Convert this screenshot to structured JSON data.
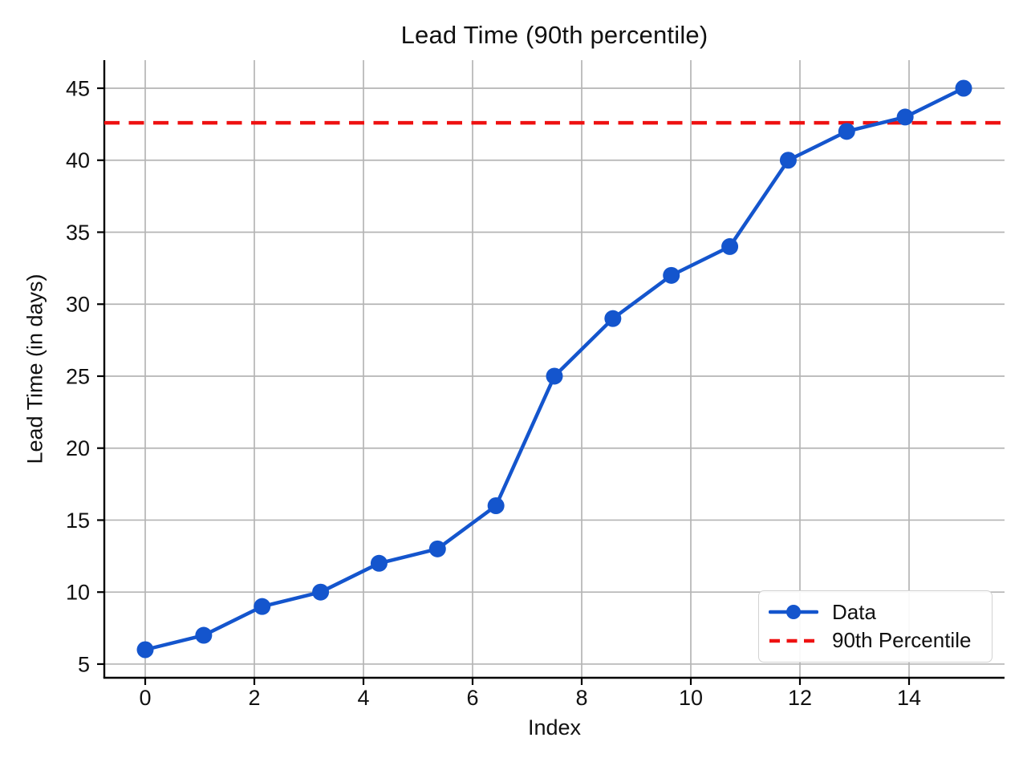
{
  "chart_data": {
    "type": "line",
    "title": "Lead Time (90th percentile)",
    "xlabel": "Index",
    "ylabel": "Lead Time (in days)",
    "x": [
      0,
      1.0714,
      2.1429,
      3.2143,
      4.2857,
      5.3571,
      6.4286,
      7.5,
      8.5714,
      9.6429,
      10.7143,
      11.7857,
      12.8571,
      13.9286,
      15
    ],
    "series": [
      {
        "name": "Data",
        "values": [
          6,
          7,
          9,
          10,
          12,
          13,
          16,
          25,
          29,
          32,
          34,
          40,
          42,
          43,
          45
        ],
        "color": "#1455cd",
        "marker": "circle",
        "style": "solid"
      }
    ],
    "reference_lines": [
      {
        "name": "90th Percentile",
        "value": 42.6,
        "color": "#ee1111",
        "style": "dashed"
      }
    ],
    "xlim": [
      -0.75,
      15.75
    ],
    "ylim": [
      4.05,
      46.95
    ],
    "xticks": [
      0,
      2,
      4,
      6,
      8,
      10,
      12,
      14
    ],
    "yticks": [
      5,
      10,
      15,
      20,
      25,
      30,
      35,
      40,
      45
    ],
    "grid": true,
    "grid_color": "#b5b5b5",
    "spine_color": "#000000",
    "tick_label_color": "#111111",
    "legend_position": "lower right"
  },
  "legend": {
    "items": [
      {
        "label": "Data",
        "type": "line-marker",
        "color": "#1455cd"
      },
      {
        "label": "90th Percentile",
        "type": "dashed-line",
        "color": "#ee1111"
      }
    ]
  }
}
